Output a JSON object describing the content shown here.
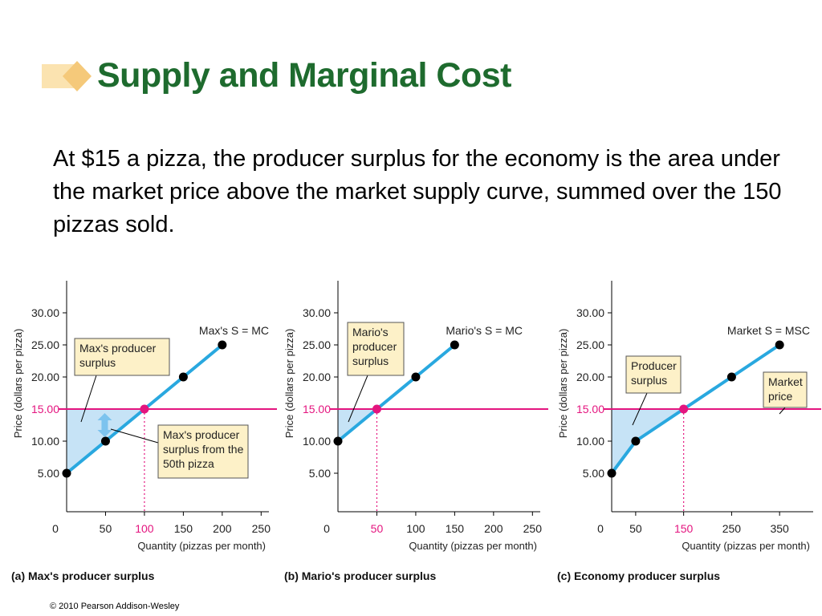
{
  "slide": {
    "title": "Supply and Marginal Cost",
    "body": "At $15 a pizza, the producer surplus for the economy is the area under the market price above the market supply curve, summed over the 150 pizzas sold.",
    "copyright": "© 2010 Pearson Addison-Wesley"
  },
  "colors": {
    "title": "#1e6b2e",
    "supply_line": "#29a8df",
    "price_line": "#e4157f",
    "surplus_fill": "#c6e3f6",
    "callout_fill": "#fdf1c8",
    "bullet": "#f5c97a"
  },
  "chart_data": [
    {
      "type": "line",
      "caption": "(a) Max's producer surplus",
      "ylabel": "Price (dollars per pizza)",
      "xlabel": "Quantity (pizzas per month)",
      "xlim": [
        0,
        260
      ],
      "ylim": [
        0,
        35
      ],
      "x_ticks": [
        "0",
        "50",
        "100",
        "150",
        "200",
        "250"
      ],
      "y_ticks": [
        "5.00",
        "10.00",
        "15.00",
        "20.00",
        "25.00",
        "30.00"
      ],
      "price": 15,
      "price_label": "15.00",
      "quantity_sold": 100,
      "quantity_label": "100",
      "series": [
        {
          "name": "Max's S = MC",
          "x": [
            0,
            50,
            100,
            150,
            200
          ],
          "y": [
            5,
            10,
            15,
            20,
            25
          ]
        }
      ],
      "callouts": [
        {
          "lines": [
            "Max's producer",
            "surplus"
          ]
        },
        {
          "lines": [
            "Max's producer",
            "surplus from the",
            "50th pizza"
          ]
        }
      ]
    },
    {
      "type": "line",
      "caption": "(b) Mario's producer surplus",
      "ylabel": "Price (dollars per pizza)",
      "xlabel": "Quantity (pizzas per month)",
      "xlim": [
        0,
        260
      ],
      "ylim": [
        0,
        35
      ],
      "x_ticks": [
        "0",
        "50",
        "100",
        "150",
        "200",
        "250"
      ],
      "y_ticks": [
        "5.00",
        "10.00",
        "15.00",
        "20.00",
        "25.00",
        "30.00"
      ],
      "price": 15,
      "price_label": "15.00",
      "quantity_sold": 50,
      "quantity_label": "50",
      "series": [
        {
          "name": "Mario's S = MC",
          "x": [
            0,
            50,
            100,
            150
          ],
          "y": [
            10,
            15,
            20,
            25
          ]
        }
      ],
      "callouts": [
        {
          "lines": [
            "Mario's",
            "producer",
            "surplus"
          ]
        }
      ]
    },
    {
      "type": "line",
      "caption": "(c) Economy producer surplus",
      "ylabel": "Price (dollars per pizza)",
      "xlabel": "Quantity (pizzas per month)",
      "xlim": [
        0,
        420
      ],
      "ylim": [
        0,
        35
      ],
      "x_ticks": [
        "0",
        "50",
        "150",
        "250",
        "350"
      ],
      "x_tick_values": [
        0,
        50,
        150,
        250,
        350
      ],
      "y_ticks": [
        "5.00",
        "10.00",
        "15.00",
        "20.00",
        "25.00",
        "30.00"
      ],
      "price": 15,
      "price_label": "15.00",
      "quantity_sold": 150,
      "quantity_label": "150",
      "series": [
        {
          "name": "Market S = MSC",
          "x": [
            0,
            50,
            150,
            250,
            350
          ],
          "y": [
            5,
            10,
            15,
            20,
            25
          ]
        }
      ],
      "callouts": [
        {
          "lines": [
            "Producer",
            "surplus"
          ]
        },
        {
          "lines": [
            "Market",
            "price"
          ]
        }
      ]
    }
  ]
}
